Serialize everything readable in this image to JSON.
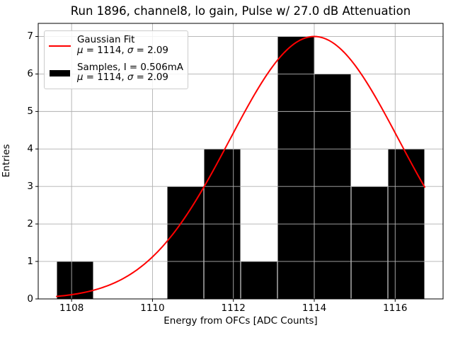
{
  "figure": {
    "background": "#ffffff"
  },
  "chart_data": {
    "type": "bar",
    "subtype": "histogram-with-gaussian-fit",
    "title": "Run 1896, channel8, lo gain, Pulse w/ 27.0 dB Attenuation",
    "xlabel": "Energy from OFCs [ADC Counts]",
    "ylabel": "Entries",
    "xlim": [
      1107.175,
      1117.185
    ],
    "ylim": [
      0,
      7.35
    ],
    "xticks": [
      1108,
      1110,
      1112,
      1114,
      1116
    ],
    "yticks": [
      0,
      1,
      2,
      3,
      4,
      5,
      6,
      7
    ],
    "grid": true,
    "grid_color": "#b0b0b0",
    "axis_color": "#000000",
    "histogram": {
      "name": "Samples",
      "bin_start": 1107.63,
      "bin_width": 0.91,
      "bin_edges": [
        1107.63,
        1108.54,
        1109.45,
        1110.36,
        1111.27,
        1112.18,
        1113.09,
        1114.0,
        1114.91,
        1115.82,
        1116.73
      ],
      "counts": [
        1,
        0,
        0,
        3,
        4,
        1,
        7,
        6,
        3,
        4
      ],
      "color": "#000000",
      "edge_color": "#ffffff"
    },
    "gaussian_fit": {
      "name": "Gaussian Fit",
      "amplitude": 7.0,
      "mu": 1114,
      "sigma": 2.09,
      "domain": [
        1107.63,
        1116.73
      ],
      "color": "#ff0000",
      "line_width": 2
    },
    "legend": {
      "position": "upper-left",
      "entries": [
        {
          "swatch": "red-line",
          "line1": "Gaussian Fit",
          "line2": "μ = 1114, σ = 2.09"
        },
        {
          "swatch": "black-rect",
          "line1": "Samples, I = 0.506mA",
          "line2": "μ = 1114, σ = 2.09"
        }
      ]
    }
  }
}
